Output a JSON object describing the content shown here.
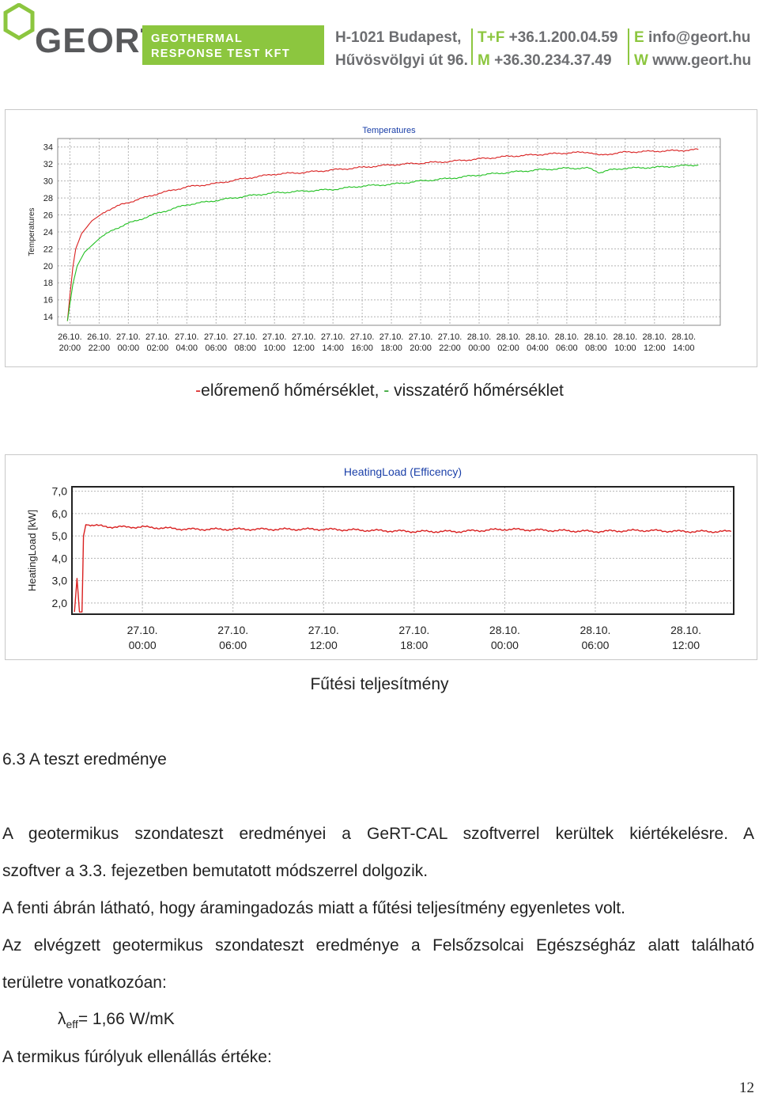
{
  "header": {
    "logo_text": "GEORT",
    "band_line1": "GEOTHERMAL",
    "band_line2": "RESPONSE TEST KFT",
    "address_line1": "H-1021 Budapest,",
    "address_line2": "Hűvösvölgyi út 96.",
    "phone_label1": "T+F",
    "phone1": "+36.1.200.04.59",
    "phone_label2": "M",
    "phone2": "+36.30.234.37.49",
    "email_label": "E",
    "email": "info@geort.hu",
    "web_label": "W",
    "web": "www.geort.hu",
    "colors": {
      "brand_green": "#8cc63f",
      "brand_grey": "#58595b"
    }
  },
  "chart1_caption": {
    "prefix": "-",
    "part1": "előremenő hőmérséklet, ",
    "dash": "-",
    "part2": " visszatérő hőmérséklet"
  },
  "chart2_caption": "Fűtési teljesítmény",
  "section": {
    "heading": "6.3 A teszt eredménye",
    "para1_line1": "A geotermikus szondateszt eredményei a GeRT-CAL szoftverrel kerültek kiértékelésre. A",
    "para1_line2": "szoftver a 3.3. fejezetben bemutatott módszerrel dolgozik.",
    "para2": "A fenti ábrán látható, hogy áramingadozás miatt a fűtési teljesítmény egyenletes volt.",
    "para3_line1": "Az elvégzett geotermikus szondateszt eredménye a Felsőzsolcai Egészségház alatt található",
    "para3_line2": "területre vonatkozóan:",
    "lambda_symbol": "λ",
    "lambda_sub": "eff",
    "lambda_value": "= 1,66 W/mK",
    "last_line": "A termikus fúrólyuk ellenállás értéke:"
  },
  "page_number": "12",
  "chart_data": [
    {
      "type": "line",
      "title": "Temperatures",
      "ylabel": "Temperatures",
      "xlabel": "",
      "ylim": [
        13,
        35
      ],
      "yticks": [
        14,
        16,
        18,
        20,
        22,
        24,
        26,
        28,
        30,
        32,
        34
      ],
      "grid": true,
      "x_unit_hours_start_label": "26.10. 20:00",
      "xticks": [
        [
          "26.10.",
          "20:00"
        ],
        [
          "26.10.",
          "22:00"
        ],
        [
          "27.10.",
          "00:00"
        ],
        [
          "27.10.",
          "02:00"
        ],
        [
          "27.10.",
          "04:00"
        ],
        [
          "27.10.",
          "06:00"
        ],
        [
          "27.10.",
          "08:00"
        ],
        [
          "27.10.",
          "10:00"
        ],
        [
          "27.10.",
          "12:00"
        ],
        [
          "27.10.",
          "14:00"
        ],
        [
          "27.10.",
          "16:00"
        ],
        [
          "27.10.",
          "18:00"
        ],
        [
          "27.10.",
          "20:00"
        ],
        [
          "27.10.",
          "22:00"
        ],
        [
          "28.10.",
          "00:00"
        ],
        [
          "28.10.",
          "02:00"
        ],
        [
          "28.10.",
          "04:00"
        ],
        [
          "28.10.",
          "06:00"
        ],
        [
          "28.10.",
          "08:00"
        ],
        [
          "28.10.",
          "10:00"
        ],
        [
          "28.10.",
          "12:00"
        ],
        [
          "28.10.",
          "14:00"
        ]
      ],
      "series": [
        {
          "color": "#d92020",
          "points": [
            [
              "26.10. 19:50",
              13.5
            ],
            [
              "26.10. 20:00",
              16.5
            ],
            [
              "26.10. 20:12",
              19.8
            ],
            [
              "26.10. 20:24",
              22.0
            ],
            [
              "26.10. 20:48",
              23.8
            ],
            [
              "26.10. 21:30",
              25.3
            ],
            [
              "26.10. 22:30",
              26.5
            ],
            [
              "26.10. 23:30",
              27.2
            ],
            [
              "27.10. 01:00",
              28.0
            ],
            [
              "27.10. 02:00",
              28.5
            ],
            [
              "27.10. 04:00",
              29.3
            ],
            [
              "27.10. 06:00",
              29.7
            ],
            [
              "27.10. 08:00",
              30.3
            ],
            [
              "27.10. 10:00",
              30.8
            ],
            [
              "27.10. 12:00",
              31.0
            ],
            [
              "27.10. 14:00",
              31.3
            ],
            [
              "27.10. 16:00",
              31.6
            ],
            [
              "27.10. 18:00",
              31.9
            ],
            [
              "27.10. 20:00",
              32.1
            ],
            [
              "27.10. 22:00",
              32.3
            ],
            [
              "28.10. 00:00",
              32.6
            ],
            [
              "28.10. 02:00",
              32.9
            ],
            [
              "28.10. 04:00",
              33.1
            ],
            [
              "28.10. 06:00",
              33.3
            ],
            [
              "28.10. 07:30",
              33.4
            ],
            [
              "28.10. 08:15",
              33.0
            ],
            [
              "28.10. 09:00",
              33.2
            ],
            [
              "28.10. 10:00",
              33.4
            ],
            [
              "28.10. 12:00",
              33.5
            ],
            [
              "28.10. 14:00",
              33.6
            ],
            [
              "28.10. 15:00",
              33.7
            ]
          ]
        },
        {
          "color": "#22c022",
          "points": [
            [
              "26.10. 19:50",
              13.5
            ],
            [
              "26.10. 20:00",
              15.5
            ],
            [
              "26.10. 20:12",
              17.8
            ],
            [
              "26.10. 20:30",
              20.0
            ],
            [
              "26.10. 21:00",
              21.6
            ],
            [
              "26.10. 22:00",
              23.2
            ],
            [
              "26.10. 23:00",
              24.3
            ],
            [
              "27.10. 00:00",
              25.0
            ],
            [
              "27.10. 01:00",
              25.6
            ],
            [
              "27.10. 02:00",
              26.2
            ],
            [
              "27.10. 04:00",
              27.2
            ],
            [
              "27.10. 06:00",
              27.7
            ],
            [
              "27.10. 08:00",
              28.2
            ],
            [
              "27.10. 10:00",
              28.6
            ],
            [
              "27.10. 12:00",
              28.8
            ],
            [
              "27.10. 14:00",
              29.0
            ],
            [
              "27.10. 16:00",
              29.4
            ],
            [
              "27.10. 18:00",
              29.6
            ],
            [
              "27.10. 20:00",
              30.0
            ],
            [
              "27.10. 22:00",
              30.3
            ],
            [
              "28.10. 00:00",
              30.7
            ],
            [
              "28.10. 02:00",
              31.0
            ],
            [
              "28.10. 04:00",
              31.3
            ],
            [
              "28.10. 06:00",
              31.5
            ],
            [
              "28.10. 07:30",
              31.5
            ],
            [
              "28.10. 08:15",
              31.0
            ],
            [
              "28.10. 09:00",
              31.3
            ],
            [
              "28.10. 10:00",
              31.5
            ],
            [
              "28.10. 12:00",
              31.6
            ],
            [
              "28.10. 14:00",
              31.8
            ],
            [
              "28.10. 15:00",
              31.9
            ]
          ]
        }
      ]
    },
    {
      "type": "line",
      "title": "HeatingLoad (Efficency)",
      "ylabel": "HeatingLoad [kW]",
      "xlabel": "",
      "ylim": [
        1.5,
        7.2
      ],
      "yticks": [
        "2,0",
        "3,0",
        "4,0",
        "5,0",
        "6,0",
        "7,0"
      ],
      "ytick_values": [
        2,
        3,
        4,
        5,
        6,
        7
      ],
      "grid": true,
      "xticks": [
        [
          "27.10.",
          "00:00"
        ],
        [
          "27.10.",
          "06:00"
        ],
        [
          "27.10.",
          "12:00"
        ],
        [
          "27.10.",
          "18:00"
        ],
        [
          "28.10.",
          "00:00"
        ],
        [
          "28.10.",
          "06:00"
        ],
        [
          "28.10.",
          "12:00"
        ]
      ],
      "series": [
        {
          "color": "#d92020",
          "points": [
            [
              "26.10. 19:30",
              1.6
            ],
            [
              "26.10. 19:40",
              3.1
            ],
            [
              "26.10. 19:50",
              1.6
            ],
            [
              "26.10. 20:00",
              1.6
            ],
            [
              "26.10. 20:06",
              5.0
            ],
            [
              "26.10. 20:15",
              5.5
            ],
            [
              "26.10. 22:00",
              5.4
            ],
            [
              "27.10. 00:00",
              5.4
            ],
            [
              "27.10. 03:00",
              5.3
            ],
            [
              "27.10. 06:00",
              5.3
            ],
            [
              "27.10. 09:00",
              5.3
            ],
            [
              "27.10. 12:00",
              5.3
            ],
            [
              "27.10. 15:00",
              5.25
            ],
            [
              "27.10. 18:00",
              5.2
            ],
            [
              "27.10. 21:00",
              5.2
            ],
            [
              "28.10. 00:00",
              5.3
            ],
            [
              "28.10. 03:00",
              5.25
            ],
            [
              "28.10. 06:00",
              5.2
            ],
            [
              "28.10. 09:00",
              5.25
            ],
            [
              "28.10. 12:00",
              5.2
            ],
            [
              "28.10. 15:00",
              5.2
            ]
          ]
        }
      ]
    }
  ]
}
